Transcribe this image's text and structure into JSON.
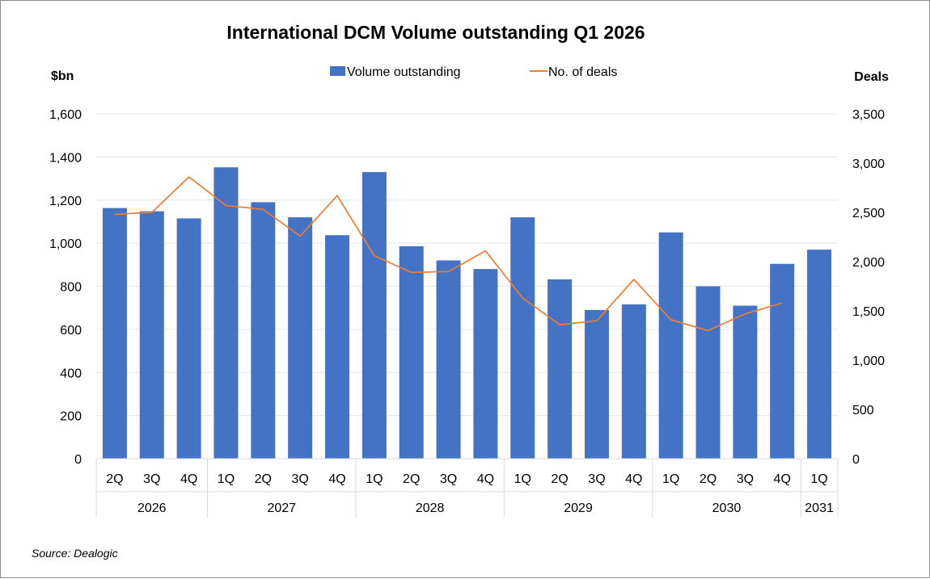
{
  "chart_data": {
    "type": "bar",
    "title": "International DCM Volume outstanding Q1 2026",
    "y_left_label": "$bn",
    "y_right_label": "Deals",
    "y_left_range": [
      0,
      1600
    ],
    "y_right_range": [
      0,
      3500
    ],
    "y_left_ticks": [
      "0",
      "200",
      "400",
      "600",
      "800",
      "1,000",
      "1,200",
      "1,400",
      "1,600"
    ],
    "y_right_ticks": [
      "0",
      "500",
      "1,000",
      "1,500",
      "2,000",
      "2,500",
      "3,000",
      "3,500"
    ],
    "grid": true,
    "legend_position": "top",
    "categories": [
      "2Q",
      "3Q",
      "4Q",
      "1Q",
      "2Q",
      "3Q",
      "4Q",
      "1Q",
      "2Q",
      "3Q",
      "4Q",
      "1Q",
      "2Q",
      "3Q",
      "4Q",
      "1Q",
      "2Q",
      "3Q",
      "4Q",
      "1Q"
    ],
    "years": [
      {
        "label": "2026",
        "count": 3
      },
      {
        "label": "2027",
        "count": 4
      },
      {
        "label": "2028",
        "count": 4
      },
      {
        "label": "2029",
        "count": 4
      },
      {
        "label": "2030",
        "count": 4
      },
      {
        "label": "2031",
        "count": 1
      }
    ],
    "series": [
      {
        "name": "Volume outstanding",
        "type": "bar",
        "axis": "left",
        "color": "#4472C4",
        "values": [
          1163,
          1148,
          1115,
          1352,
          1190,
          1120,
          1037,
          1330,
          986,
          920,
          880,
          1120,
          832,
          690,
          716,
          1050,
          800,
          710,
          904,
          970
        ]
      },
      {
        "name": "No. of deals",
        "type": "line",
        "axis": "right",
        "color": "#ED7D31",
        "values": [
          2480,
          2500,
          2860,
          2570,
          2530,
          2260,
          2670,
          2060,
          1890,
          1900,
          2110,
          1630,
          1360,
          1400,
          1820,
          1410,
          1300,
          1470,
          1580,
          null
        ]
      }
    ]
  },
  "source": "Source: Dealogic"
}
